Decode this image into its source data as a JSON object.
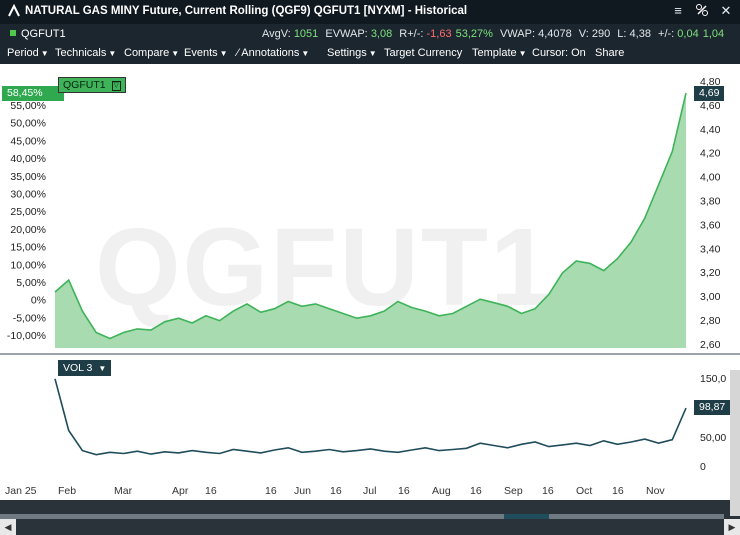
{
  "window": {
    "title": "NATURAL GAS MINY Future, Current Rolling (QGF9) QGFUT1 [NYXM] - Historical"
  },
  "infobar": {
    "symbol": "QGFUT1",
    "avgv_label": "AvgV:",
    "avgv_value": "1051",
    "evwap_label": "EVWAP:",
    "evwap_value": "3,08",
    "rpm_label": "R+/-:",
    "rpm_value": "-1,63",
    "rpm_pct": "53,27%",
    "vwap_label": "VWAP:",
    "vwap_value": "4,4078",
    "v_label": "V:",
    "v_value": "290",
    "l_label": "L:",
    "l_value": "4,38",
    "pm_label": "+/-:",
    "pm_value": "0,04",
    "pm_tail": "1,04"
  },
  "menubar": {
    "period": "Period",
    "technicals": "Technicals",
    "compare": "Compare",
    "events": "Events",
    "annotations": "Annotations",
    "settings": "Settings",
    "target_currency": "Target Currency",
    "template": "Template",
    "cursor": "Cursor: On",
    "share": "Share"
  },
  "main_chart": {
    "watermark": "QGFUT1",
    "legend_label": "QGFUT1",
    "left_axis_labels": [
      "55,00%",
      "50,00%",
      "45,00%",
      "40,00%",
      "35,00%",
      "30,00%",
      "25,00%",
      "20,00%",
      "15,00%",
      "10,00%",
      "5,00%",
      "0%",
      "-5,00%",
      "-10,00%"
    ],
    "right_axis_labels": [
      "4,80",
      "4,60",
      "4,40",
      "4,20",
      "4,00",
      "3,80",
      "3,60",
      "3,40",
      "3,20",
      "3,00",
      "2,80",
      "2,60"
    ],
    "current_pct_tag": "58,45%",
    "current_price_tag": "4,69",
    "fill_color": "#a8dcb0",
    "line_color": "#3fb35a"
  },
  "volume_chart": {
    "legend_label": "VOL 3",
    "right_axis_labels": [
      "150,0",
      "100,0",
      "50,00",
      "0"
    ],
    "current_tag": "98,87",
    "line_color": "#1f4d5c"
  },
  "x_axis": {
    "labels": [
      "Jan 25",
      "Feb",
      "Mar",
      "Apr",
      "16",
      "16",
      "Jun",
      "16",
      "Jul",
      "16",
      "Aug",
      "16",
      "Sep",
      "16",
      "Oct",
      "16",
      "Nov"
    ]
  },
  "chart_data": [
    {
      "type": "area",
      "series": [
        {
          "name": "QGFUT1",
          "values": [
            3.02,
            3.12,
            2.86,
            2.68,
            2.63,
            2.68,
            2.71,
            2.7,
            2.77,
            2.8,
            2.76,
            2.82,
            2.78,
            2.86,
            2.92,
            2.85,
            2.88,
            2.94,
            2.9,
            2.92,
            2.88,
            2.84,
            2.8,
            2.82,
            2.86,
            2.94,
            2.89,
            2.86,
            2.82,
            2.84,
            2.9,
            2.96,
            2.93,
            2.9,
            2.84,
            2.88,
            3.0,
            3.18,
            3.28,
            3.26,
            3.2,
            3.3,
            3.44,
            3.64,
            3.92,
            4.2,
            4.69
          ]
        }
      ],
      "ylim": [
        2.55,
        4.85
      ],
      "y_pct_range": [
        "-12,00%",
        "58,45%"
      ]
    },
    {
      "type": "line",
      "series": [
        {
          "name": "VOL 3",
          "values": [
            150,
            60,
            25,
            18,
            22,
            20,
            24,
            19,
            23,
            21,
            25,
            22,
            20,
            27,
            24,
            21,
            26,
            30,
            22,
            24,
            27,
            23,
            25,
            28,
            24,
            22,
            26,
            30,
            25,
            27,
            29,
            38,
            34,
            30,
            36,
            40,
            32,
            35,
            38,
            34,
            42,
            36,
            40,
            45,
            38,
            44,
            98.87
          ]
        }
      ],
      "ylim": [
        0,
        160
      ]
    }
  ]
}
